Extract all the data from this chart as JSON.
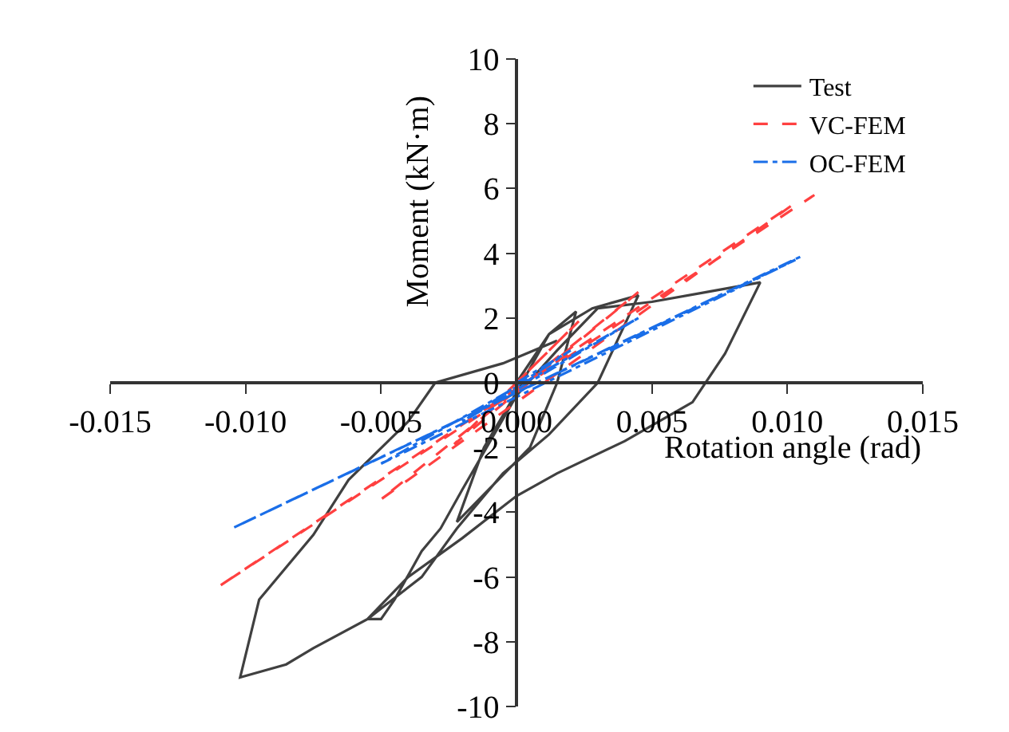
{
  "chart_data": {
    "type": "line",
    "xlabel": "Rotation angle (rad)",
    "ylabel": "Moment (kN·m)",
    "xlim": [
      -0.015,
      0.015
    ],
    "xticks": [
      {
        "value": -0.015,
        "label": "-0.015"
      },
      {
        "value": -0.01,
        "label": "-0.010"
      },
      {
        "value": -0.005,
        "label": "-0.005"
      },
      {
        "value": 0,
        "label": "0.000"
      },
      {
        "value": 0.005,
        "label": "0.005"
      },
      {
        "value": 0.01,
        "label": "0.010"
      },
      {
        "value": 0.015,
        "label": "0.015"
      }
    ],
    "ylim": [
      -10,
      10
    ],
    "yticks": [
      -10,
      -8,
      -6,
      -4,
      -2,
      0,
      2,
      4,
      6,
      8,
      10
    ],
    "grid": false,
    "legend": "top right",
    "marker": "none",
    "series": [
      {
        "name": "Test",
        "color": "#404040",
        "line_style": "solid",
        "x": [
          0,
          0.0012,
          0.0022,
          0.0015,
          0.0005,
          -0.0022,
          -0.0012,
          0,
          0.0012,
          0.0028,
          0.0045,
          0.003,
          0.0012,
          -0.0005,
          -0.0022,
          -0.0035,
          -0.0055,
          -0.005,
          -0.0045,
          -0.0035,
          -0.0028,
          -0.002,
          0,
          0.0015,
          0.003,
          0.005,
          0.007,
          0.009,
          0.0077,
          0.0065,
          0.004,
          0.0015,
          0,
          -0.002,
          -0.004,
          -0.0055,
          -0.0075,
          -0.0085,
          -0.0102,
          -0.0095,
          -0.0075,
          -0.0062,
          -0.004,
          -0.003,
          -0.0005,
          0.0015
        ],
        "values": [
          0,
          1.5,
          2.2,
          0,
          -2,
          -4.3,
          -2,
          -0.3,
          1.5,
          2.3,
          2.7,
          0,
          -1.6,
          -2.8,
          -4.5,
          -6,
          -7.3,
          -7.3,
          -6.7,
          -5.2,
          -4.5,
          -3.3,
          -0.4,
          1,
          2.3,
          2.5,
          2.8,
          3.1,
          0.9,
          -0.6,
          -1.8,
          -2.8,
          -3.5,
          -4.8,
          -6,
          -7.3,
          -8.2,
          -8.7,
          -9.1,
          -6.7,
          -4.7,
          -3,
          -1.2,
          0,
          0.6,
          1.3
        ]
      },
      {
        "name": "VC-FEM",
        "color": "#ff4040",
        "line_style": "dashed",
        "x": [
          0,
          0.0023,
          -0.0023,
          0.0045,
          -0.005,
          0.0102,
          -0.011,
          0.011
        ],
        "values": [
          0,
          1.9,
          -1.9,
          2.8,
          -3.6,
          5.5,
          -6.3,
          5.8
        ]
      },
      {
        "name": "OC-FEM",
        "color": "#1a6ee8",
        "line_style": "dashdot",
        "x": [
          0,
          0.002,
          -0.002,
          0.0045,
          -0.005,
          0.0103,
          -0.0105,
          0.0105
        ],
        "values": [
          0,
          1,
          -1.2,
          2,
          -2.5,
          3.8,
          -4.5,
          3.9
        ]
      }
    ]
  }
}
